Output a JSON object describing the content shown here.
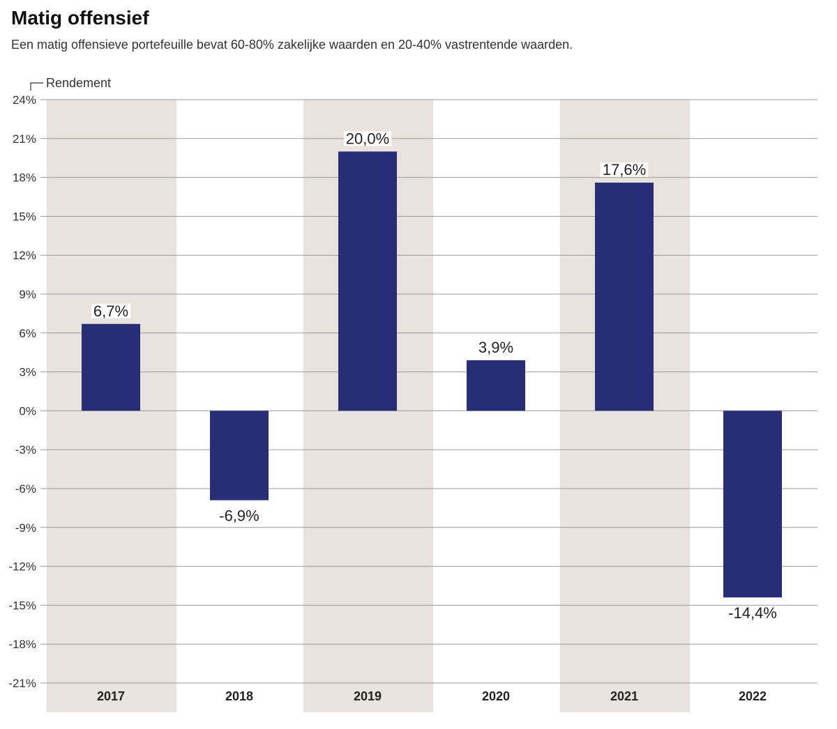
{
  "header": {
    "title": "Matig offensief",
    "subtitle": "Een matig offensieve portefeuille bevat 60-80% zakelijke waarden en 20-40% vastrentende waarden."
  },
  "chart_data": {
    "type": "bar",
    "title": "Matig offensief",
    "ylabel": "Rendement",
    "xlabel": "",
    "categories": [
      "2017",
      "2018",
      "2019",
      "2020",
      "2021",
      "2022"
    ],
    "values": [
      6.7,
      -6.9,
      20.0,
      3.9,
      17.6,
      -14.4
    ],
    "value_labels": [
      "6,7%",
      "-6,9%",
      "20,0%",
      "3,9%",
      "17,6%",
      "-14,4%"
    ],
    "ylim": [
      -21,
      24
    ],
    "yticks": [
      24,
      21,
      18,
      15,
      12,
      9,
      6,
      3,
      0,
      -3,
      -6,
      -9,
      -12,
      -15,
      -18,
      -21
    ],
    "ytick_labels": [
      "24%",
      "21%",
      "18%",
      "15%",
      "12%",
      "9%",
      "6%",
      "3%",
      "0%",
      "-3%",
      "-6%",
      "-9%",
      "-12%",
      "-15%",
      "-18%",
      "-21%"
    ],
    "grid": true,
    "shaded_categories": [
      "2017",
      "2019",
      "2021"
    ],
    "colors": {
      "bar": "#282d78",
      "band": "#e8e3dd",
      "grid": "#9a9a9a"
    }
  }
}
